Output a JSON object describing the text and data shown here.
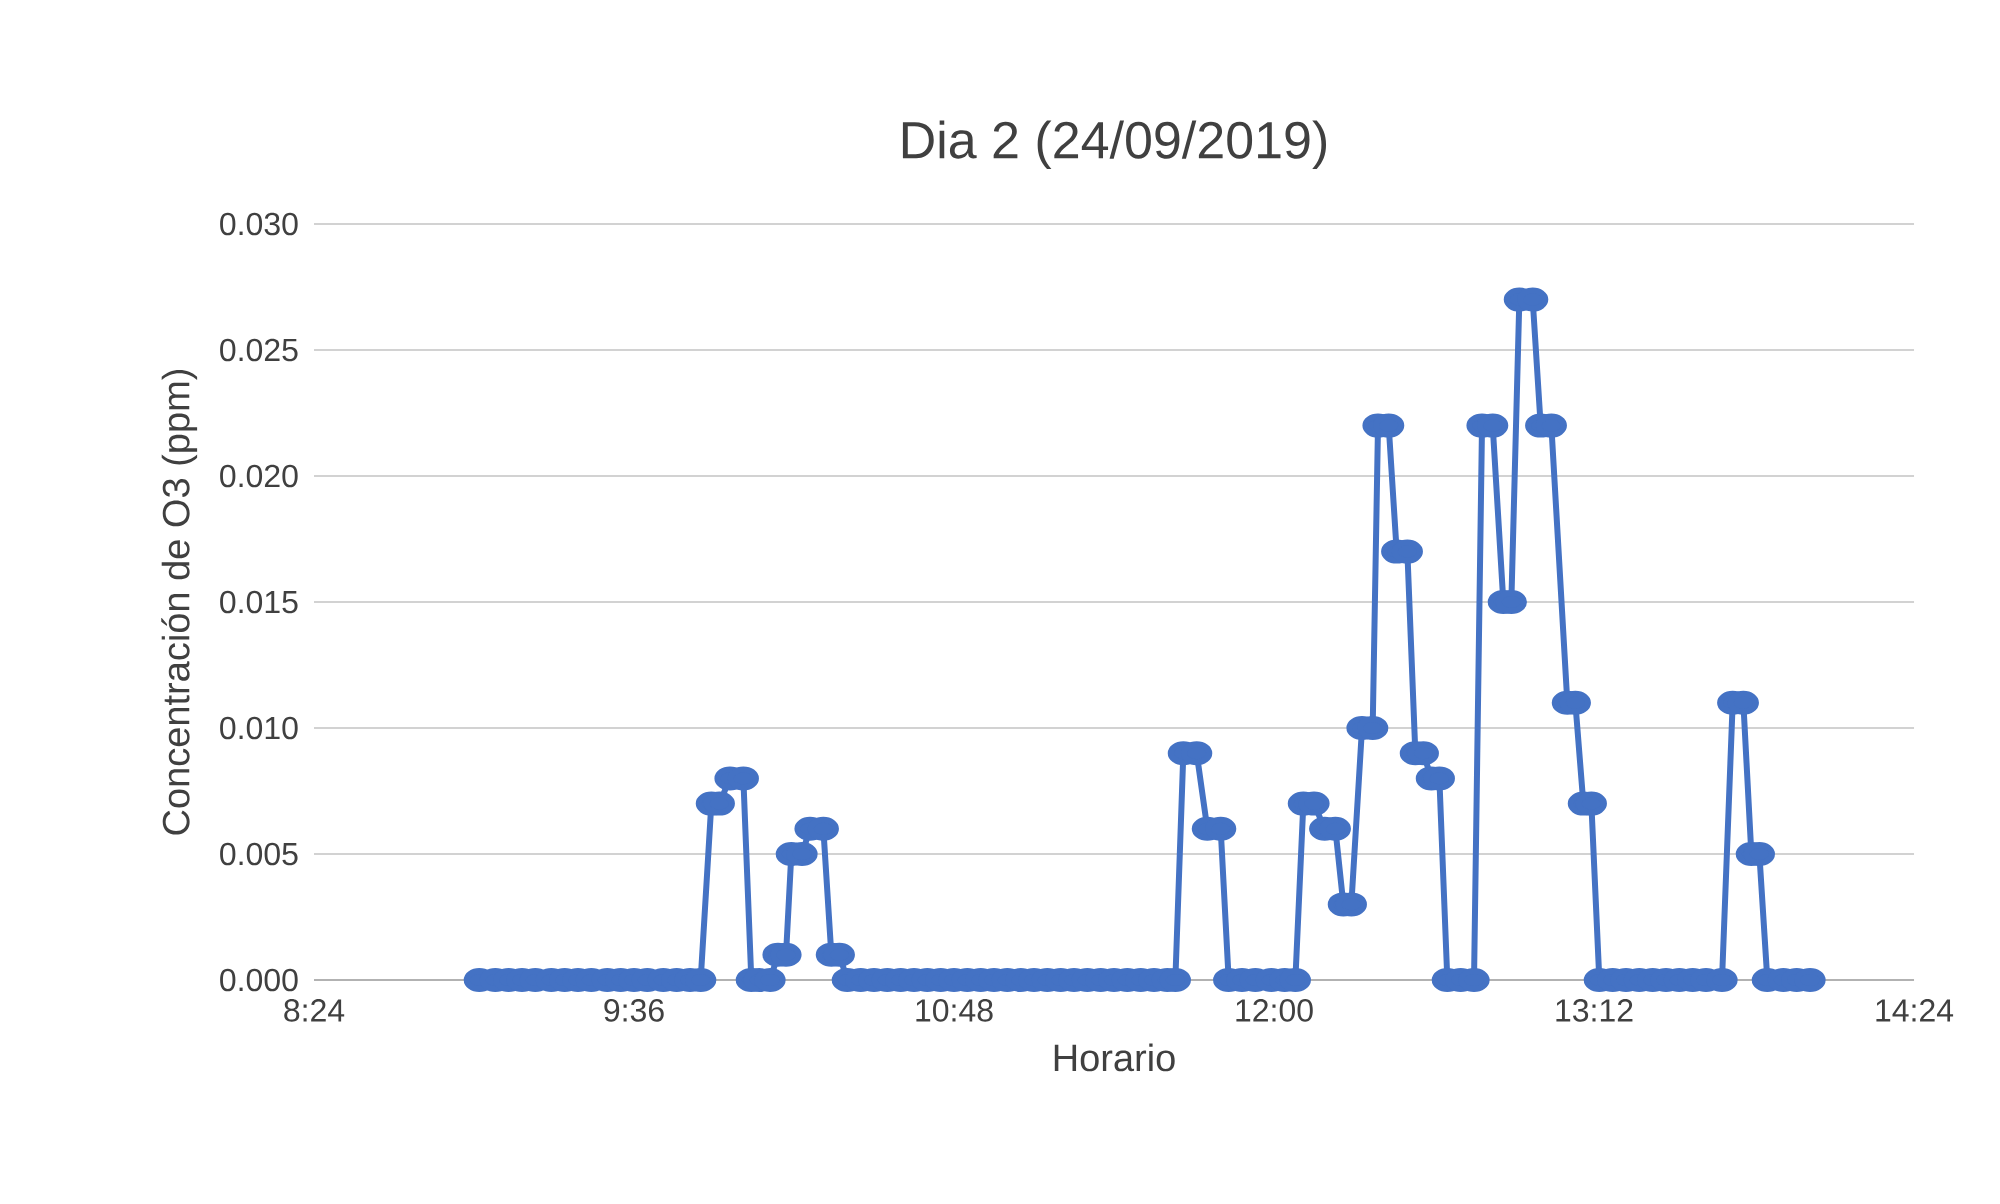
{
  "chart_data": {
    "type": "line",
    "title": "Dia 2 (24/09/2019)",
    "xlabel": "Horario",
    "ylabel": "Concentración de O3 (ppm)",
    "x": [
      9.02,
      9.08,
      9.13,
      9.18,
      9.23,
      9.29,
      9.34,
      9.39,
      9.44,
      9.5,
      9.55,
      9.6,
      9.65,
      9.71,
      9.76,
      9.81,
      9.85,
      9.89,
      9.92,
      9.96,
      10.01,
      10.04,
      10.07,
      10.11,
      10.14,
      10.17,
      10.19,
      10.23,
      10.26,
      10.31,
      10.34,
      10.37,
      10.4,
      10.45,
      10.5,
      10.55,
      10.6,
      10.65,
      10.7,
      10.75,
      10.8,
      10.85,
      10.9,
      10.95,
      11.0,
      11.05,
      11.1,
      11.15,
      11.2,
      11.25,
      11.3,
      11.35,
      11.4,
      11.45,
      11.5,
      11.55,
      11.6,
      11.63,
      11.66,
      11.71,
      11.75,
      11.8,
      11.83,
      11.88,
      11.93,
      11.99,
      12.04,
      12.08,
      12.11,
      12.15,
      12.19,
      12.23,
      12.26,
      12.29,
      12.33,
      12.37,
      12.39,
      12.43,
      12.46,
      12.5,
      12.53,
      12.56,
      12.59,
      12.62,
      12.65,
      12.7,
      12.75,
      12.78,
      12.82,
      12.86,
      12.89,
      12.92,
      12.97,
      13.0,
      13.04,
      13.1,
      13.13,
      13.16,
      13.19,
      13.22,
      13.27,
      13.32,
      13.37,
      13.42,
      13.47,
      13.52,
      13.57,
      13.62,
      13.68,
      13.72,
      13.76,
      13.79,
      13.82,
      13.85,
      13.91,
      13.96,
      14.01
    ],
    "series": [
      {
        "color": "#4472c4",
        "values": [
          0,
          0,
          0,
          0,
          0,
          0,
          0,
          0,
          0,
          0,
          0,
          0,
          0,
          0,
          0,
          0,
          0,
          0.007,
          0.007,
          0.008,
          0.008,
          0,
          0,
          0,
          0.001,
          0.001,
          0.005,
          0.005,
          0.006,
          0.006,
          0.001,
          0.001,
          0,
          0,
          0,
          0,
          0,
          0,
          0,
          0,
          0,
          0,
          0,
          0,
          0,
          0,
          0,
          0,
          0,
          0,
          0,
          0,
          0,
          0,
          0,
          0,
          0,
          0,
          0.009,
          0.009,
          0.006,
          0.006,
          0,
          0,
          0,
          0,
          0,
          0,
          0.007,
          0.007,
          0.006,
          0.006,
          0.003,
          0.003,
          0.01,
          0.01,
          0.022,
          0.022,
          0.017,
          0.017,
          0.009,
          0.009,
          0.008,
          0.008,
          0,
          0,
          0,
          0.022,
          0.022,
          0.015,
          0.015,
          0.027,
          0.027,
          0.022,
          0.022,
          0.011,
          0.011,
          0.007,
          0.007,
          0,
          0,
          0,
          0,
          0,
          0,
          0,
          0,
          0,
          0,
          0.011,
          0.011,
          0.005,
          0.005,
          0,
          0,
          0,
          0
        ]
      }
    ],
    "xlim": [
      8.4,
      14.4
    ],
    "xticks": [
      {
        "value": 8.4,
        "label": "8:24"
      },
      {
        "value": 9.6,
        "label": "9:36"
      },
      {
        "value": 10.8,
        "label": "10:48"
      },
      {
        "value": 12.0,
        "label": "12:00"
      },
      {
        "value": 13.2,
        "label": "13:12"
      },
      {
        "value": 14.4,
        "label": "14:24"
      }
    ],
    "ylim": [
      0,
      0.03
    ],
    "yticks": [
      {
        "value": 0,
        "label": "0.000"
      },
      {
        "value": 0.005,
        "label": "0.005"
      },
      {
        "value": 0.01,
        "label": "0.010"
      },
      {
        "value": 0.015,
        "label": "0.015"
      },
      {
        "value": 0.02,
        "label": "0.020"
      },
      {
        "value": 0.025,
        "label": "0.025"
      },
      {
        "value": 0.03,
        "label": "0.030"
      }
    ],
    "grid": "y",
    "marker": "circle",
    "line_style": "solid"
  }
}
